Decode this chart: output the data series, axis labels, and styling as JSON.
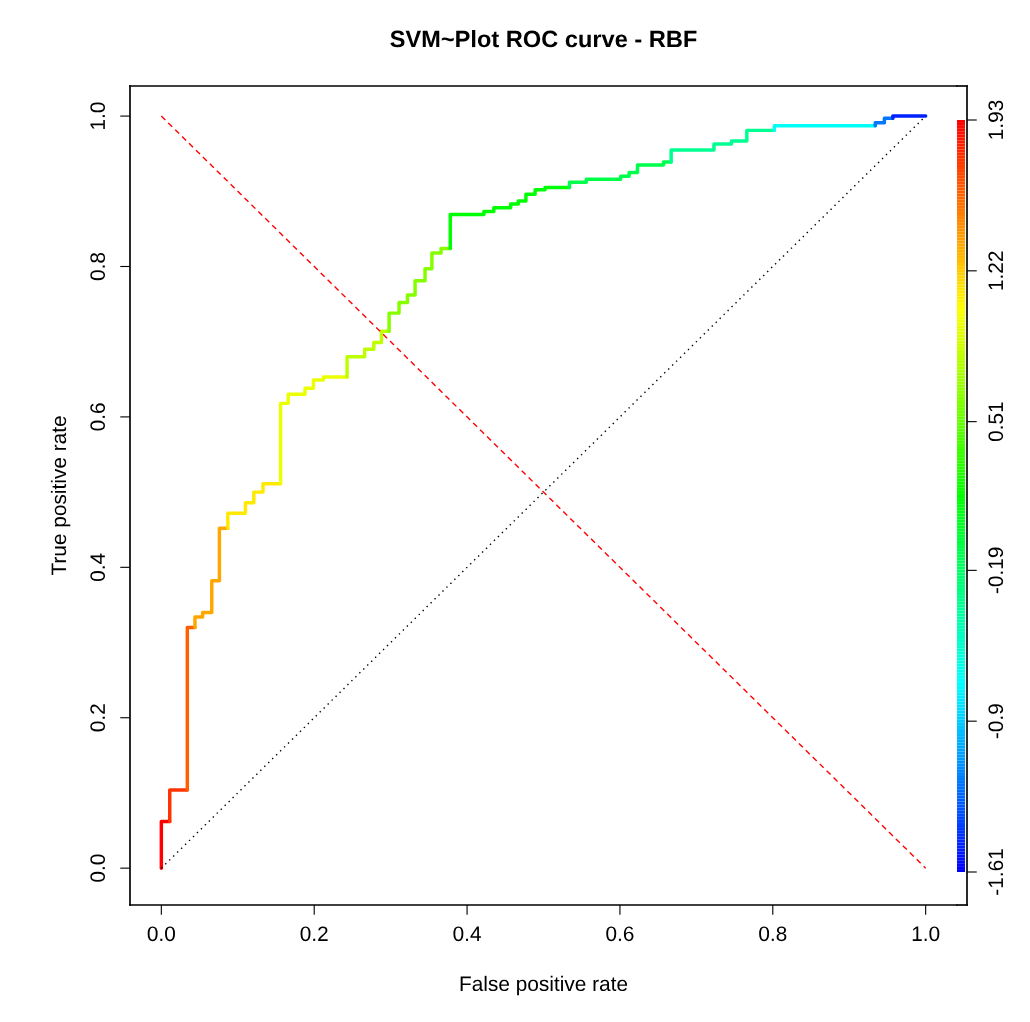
{
  "chart_data": {
    "type": "line",
    "title": "SVM~Plot ROC curve - RBF",
    "xlabel": "False positive rate",
    "ylabel": "True positive rate",
    "xlim": [
      -0.041,
      1.041
    ],
    "ylim": [
      -0.049,
      1.04
    ],
    "xticks": [
      {
        "value": 0,
        "label": "0.0"
      },
      0.2,
      0.4,
      0.6,
      0.8,
      {
        "value": 1,
        "label": "1.0"
      }
    ],
    "yticks": [
      {
        "value": 0,
        "label": "0.0"
      },
      0.2,
      0.4,
      0.6,
      0.8,
      {
        "value": 1,
        "label": "1.0"
      }
    ],
    "clim": [
      -1.61,
      1.93
    ],
    "cticks": [
      1.93,
      1.22,
      0.51,
      -0.19,
      -0.9,
      -1.61
    ],
    "grid": false,
    "legend": false,
    "series": [
      {
        "color": "#ff0000",
        "x": [
          0,
          0,
          0.011
        ],
        "values": [
          0,
          0.062,
          0.062
        ]
      },
      {
        "color": "#ff3400",
        "x": [
          0.011,
          0.011,
          0.034
        ],
        "values": [
          0.062,
          0.104,
          0.104
        ]
      },
      {
        "color": "#ff5f00",
        "x": [
          0.034,
          0.034,
          0.044
        ],
        "values": [
          0.104,
          0.32,
          0.32
        ]
      },
      {
        "color": "#ffa700",
        "x": [
          0.044,
          0.044,
          0.054,
          0.054,
          0.066,
          0.066,
          0.076,
          0.076,
          0.087
        ],
        "values": [
          0.32,
          0.334,
          0.334,
          0.34,
          0.34,
          0.382,
          0.382,
          0.452,
          0.452
        ]
      },
      {
        "color": "#ffe900",
        "x": [
          0.087,
          0.087,
          0.11,
          0.11,
          0.121,
          0.121,
          0.133,
          0.133,
          0.156
        ],
        "values": [
          0.452,
          0.472,
          0.472,
          0.486,
          0.486,
          0.5,
          0.5,
          0.511,
          0.511
        ]
      },
      {
        "color": "#ecff00",
        "x": [
          0.156,
          0.156,
          0.166,
          0.166,
          0.188,
          0.188,
          0.199,
          0.199,
          0.212,
          0.212,
          0.243
        ],
        "values": [
          0.511,
          0.618,
          0.618,
          0.63,
          0.63,
          0.638,
          0.638,
          0.649,
          0.649,
          0.653,
          0.653
        ]
      },
      {
        "color": "#beff00",
        "x": [
          0.243,
          0.243,
          0.266,
          0.266,
          0.278,
          0.278,
          0.288,
          0.288,
          0.298
        ],
        "values": [
          0.653,
          0.68,
          0.68,
          0.69,
          0.69,
          0.699,
          0.699,
          0.714,
          0.714
        ]
      },
      {
        "color": "#85ff00",
        "x": [
          0.298,
          0.298,
          0.311,
          0.311,
          0.322,
          0.322,
          0.332,
          0.332,
          0.345,
          0.345,
          0.354,
          0.354,
          0.366,
          0.366,
          0.378
        ],
        "values": [
          0.714,
          0.738,
          0.738,
          0.752,
          0.752,
          0.762,
          0.762,
          0.781,
          0.781,
          0.797,
          0.797,
          0.818,
          0.818,
          0.824,
          0.824
        ]
      },
      {
        "color": "#00ff03",
        "x": [
          0.378,
          0.378,
          0.422,
          0.422,
          0.435,
          0.435,
          0.457,
          0.457,
          0.467,
          0.467,
          0.477,
          0.477,
          0.489,
          0.489,
          0.502,
          0.502,
          0.534
        ],
        "values": [
          0.824,
          0.869,
          0.869,
          0.873,
          0.873,
          0.878,
          0.878,
          0.883,
          0.883,
          0.887,
          0.887,
          0.896,
          0.896,
          0.902,
          0.902,
          0.905,
          0.905
        ]
      },
      {
        "color": "#00ff4b",
        "x": [
          0.534,
          0.534,
          0.556,
          0.556,
          0.601,
          0.601,
          0.612,
          0.612,
          0.623,
          0.623,
          0.657,
          0.657,
          0.667
        ],
        "values": [
          0.905,
          0.912,
          0.912,
          0.916,
          0.916,
          0.92,
          0.92,
          0.925,
          0.925,
          0.935,
          0.935,
          0.939,
          0.939
        ]
      },
      {
        "color": "#00ff93",
        "x": [
          0.667,
          0.667,
          0.723,
          0.723,
          0.746,
          0.746,
          0.766,
          0.766,
          0.802
        ],
        "values": [
          0.939,
          0.955,
          0.955,
          0.963,
          0.963,
          0.967,
          0.967,
          0.981,
          0.981
        ]
      },
      {
        "color": "#00fff6",
        "x": [
          0.802,
          0.802,
          0.934
        ],
        "values": [
          0.981,
          0.987,
          0.987
        ]
      },
      {
        "color": "#0077ff",
        "x": [
          0.934,
          0.934,
          0.946,
          0.946,
          0.957
        ],
        "values": [
          0.987,
          0.991,
          0.991,
          0.997,
          0.997
        ]
      },
      {
        "color": "#0022ff",
        "x": [
          0.957,
          0.957,
          1.0
        ],
        "values": [
          0.997,
          1.0,
          1.0
        ]
      },
      {
        "type": "line",
        "x": [
          0,
          1
        ],
        "values": [
          0,
          1
        ],
        "color": "#000000",
        "line_style": "dotted"
      },
      {
        "type": "line",
        "x": [
          0,
          1
        ],
        "values": [
          1,
          0
        ],
        "color": "#ff0000",
        "line_style": "dashed"
      }
    ]
  }
}
